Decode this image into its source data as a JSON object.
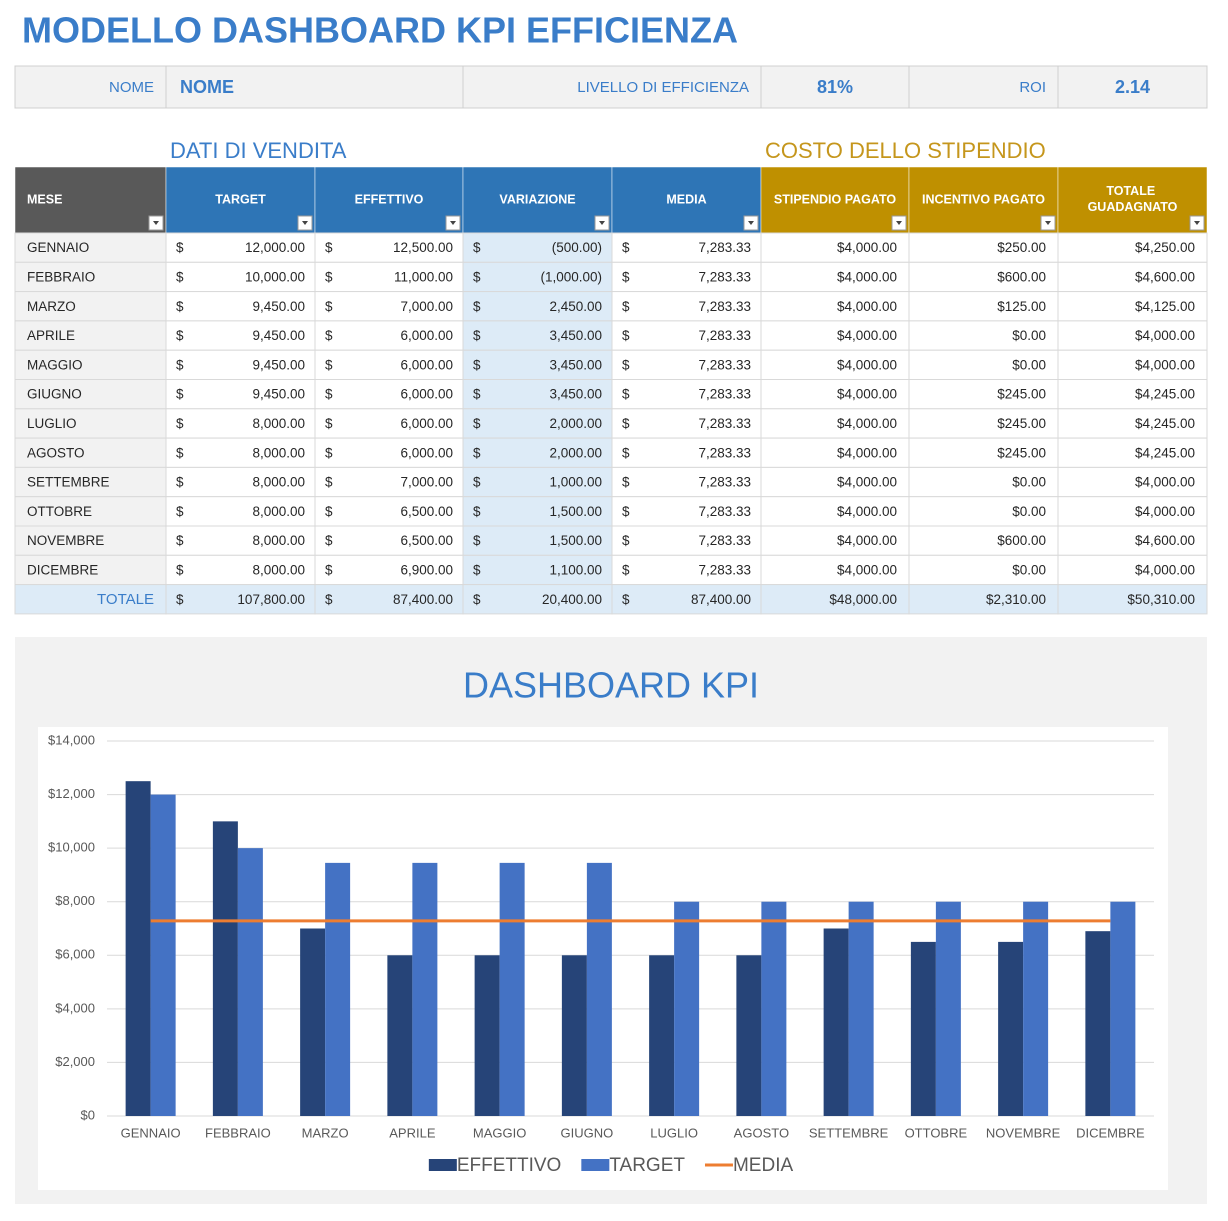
{
  "title": "MODELLO DASHBOARD KPI EFFICIENZA",
  "summary": [
    {
      "label": "NOME",
      "value": "NOME"
    },
    {
      "label": "LIVELLO DI EFFICIENZA",
      "value": "81%"
    },
    {
      "label": "ROI",
      "value": "2.14"
    }
  ],
  "sections": [
    "DATI DI VENDITA",
    "COSTO DELLO STIPENDIO"
  ],
  "table": {
    "header": [
      "MESE",
      "TARGET",
      "EFFETTIVO",
      "VARIAZIONE",
      "MEDIA",
      "STIPENDIO PAGATO",
      "INCENTIVO PAGATO",
      "TOTALE GUADAGNATO"
    ],
    "rows": [
      [
        "GENNAIO",
        [
          "$",
          "12,000.00"
        ],
        [
          "$",
          "12,500.00"
        ],
        [
          "$",
          "(500.00)"
        ],
        [
          "$",
          "7,283.33"
        ],
        "$4,000.00",
        "$250.00",
        "$4,250.00"
      ],
      [
        "FEBBRAIO",
        [
          "$",
          "10,000.00"
        ],
        [
          "$",
          "11,000.00"
        ],
        [
          "$",
          "(1,000.00)"
        ],
        [
          "$",
          "7,283.33"
        ],
        "$4,000.00",
        "$600.00",
        "$4,600.00"
      ],
      [
        "MARZO",
        [
          "$",
          "9,450.00"
        ],
        [
          "$",
          "7,000.00"
        ],
        [
          "$",
          "2,450.00"
        ],
        [
          "$",
          "7,283.33"
        ],
        "$4,000.00",
        "$125.00",
        "$4,125.00"
      ],
      [
        "APRILE",
        [
          "$",
          "9,450.00"
        ],
        [
          "$",
          "6,000.00"
        ],
        [
          "$",
          "3,450.00"
        ],
        [
          "$",
          "7,283.33"
        ],
        "$4,000.00",
        "$0.00",
        "$4,000.00"
      ],
      [
        "MAGGIO",
        [
          "$",
          "9,450.00"
        ],
        [
          "$",
          "6,000.00"
        ],
        [
          "$",
          "3,450.00"
        ],
        [
          "$",
          "7,283.33"
        ],
        "$4,000.00",
        "$0.00",
        "$4,000.00"
      ],
      [
        "GIUGNO",
        [
          "$",
          "9,450.00"
        ],
        [
          "$",
          "6,000.00"
        ],
        [
          "$",
          "3,450.00"
        ],
        [
          "$",
          "7,283.33"
        ],
        "$4,000.00",
        "$245.00",
        "$4,245.00"
      ],
      [
        "LUGLIO",
        [
          "$",
          "8,000.00"
        ],
        [
          "$",
          "6,000.00"
        ],
        [
          "$",
          "2,000.00"
        ],
        [
          "$",
          "7,283.33"
        ],
        "$4,000.00",
        "$245.00",
        "$4,245.00"
      ],
      [
        "AGOSTO",
        [
          "$",
          "8,000.00"
        ],
        [
          "$",
          "6,000.00"
        ],
        [
          "$",
          "2,000.00"
        ],
        [
          "$",
          "7,283.33"
        ],
        "$4,000.00",
        "$245.00",
        "$4,245.00"
      ],
      [
        "SETTEMBRE",
        [
          "$",
          "8,000.00"
        ],
        [
          "$",
          "7,000.00"
        ],
        [
          "$",
          "1,000.00"
        ],
        [
          "$",
          "7,283.33"
        ],
        "$4,000.00",
        "$0.00",
        "$4,000.00"
      ],
      [
        "OTTOBRE",
        [
          "$",
          "8,000.00"
        ],
        [
          "$",
          "6,500.00"
        ],
        [
          "$",
          "1,500.00"
        ],
        [
          "$",
          "7,283.33"
        ],
        "$4,000.00",
        "$0.00",
        "$4,000.00"
      ],
      [
        "NOVEMBRE",
        [
          "$",
          "8,000.00"
        ],
        [
          "$",
          "6,500.00"
        ],
        [
          "$",
          "1,500.00"
        ],
        [
          "$",
          "7,283.33"
        ],
        "$4,000.00",
        "$600.00",
        "$4,600.00"
      ],
      [
        "DICEMBRE",
        [
          "$",
          "8,000.00"
        ],
        [
          "$",
          "6,900.00"
        ],
        [
          "$",
          "1,100.00"
        ],
        [
          "$",
          "7,283.33"
        ],
        "$4,000.00",
        "$0.00",
        "$4,000.00"
      ],
      [
        "TOTALE",
        [
          "$",
          "107,800.00"
        ],
        [
          "$",
          "87,400.00"
        ],
        [
          "$",
          "20,400.00"
        ],
        [
          "$",
          "87,400.00"
        ],
        "$48,000.00",
        "$2,310.00",
        "$50,310.00"
      ]
    ]
  },
  "chart_data": {
    "type": "bar",
    "title": "DASHBOARD KPI",
    "categories": [
      "GENNAIO",
      "FEBBRAIO",
      "MARZO",
      "APRILE",
      "MAGGIO",
      "GIUGNO",
      "LUGLIO",
      "AGOSTO",
      "SETTEMBRE",
      "OTTOBRE",
      "NOVEMBRE",
      "DICEMBRE"
    ],
    "series": [
      {
        "name": "EFFETTIVO",
        "type": "bar",
        "color": "#264478",
        "values": [
          12500,
          11000,
          7000,
          6000,
          6000,
          6000,
          6000,
          6000,
          7000,
          6500,
          6500,
          6900
        ]
      },
      {
        "name": "TARGET",
        "type": "bar",
        "color": "#4472c4",
        "values": [
          12000,
          10000,
          9450,
          9450,
          9450,
          9450,
          8000,
          8000,
          8000,
          8000,
          8000,
          8000
        ]
      },
      {
        "name": "MEDIA",
        "type": "line",
        "color": "#ed7d31",
        "values": [
          7283.33,
          7283.33,
          7283.33,
          7283.33,
          7283.33,
          7283.33,
          7283.33,
          7283.33,
          7283.33,
          7283.33,
          7283.33,
          7283.33
        ]
      }
    ],
    "ylim": [
      0,
      14000
    ],
    "yticks": [
      {
        "value": 0,
        "label": "$0"
      },
      {
        "value": 2000,
        "label": "$2,000"
      },
      {
        "value": 4000,
        "label": "$4,000"
      },
      {
        "value": 6000,
        "label": "$6,000"
      },
      {
        "value": 8000,
        "label": "$8,000"
      },
      {
        "value": 10000,
        "label": "$10,000"
      },
      {
        "value": 12000,
        "label": "$12,000"
      },
      {
        "value": 14000,
        "label": "$14,000"
      }
    ],
    "grid": true,
    "legend": "bottom"
  }
}
